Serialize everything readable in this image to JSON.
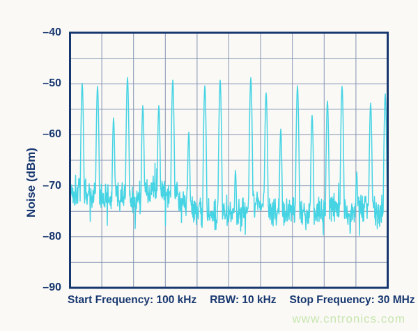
{
  "colors": {
    "axis_navy": "#17376f",
    "grid_blue_gray": "#8494b2",
    "trace_cyan": "#46d4e4",
    "watermark_green": "#c7e5ae",
    "background": "#faf9f6"
  },
  "y_axis": {
    "title": "Noise (dBm)",
    "tick_labels": [
      "–40",
      "–50",
      "–60",
      "–70",
      "–80",
      "–90"
    ]
  },
  "caption": {
    "start": "Start Frequency: 100 kHz",
    "rbw": "RBW: 10 kHz",
    "stop": "Stop Frequency: 30 MHz"
  },
  "watermark": {
    "text": "www.cntronics.com"
  },
  "chart_data": {
    "type": "line",
    "title": "",
    "xlabel": "Start Frequency: 100 kHz   RBW: 10 kHz   Stop Frequency: 30 MHz",
    "ylabel": "Noise (dBm)",
    "x_unit": "MHz",
    "x_range": [
      0.1,
      30
    ],
    "ylim": [
      -90,
      -40
    ],
    "y_ticks": [
      -40,
      -50,
      -60,
      -70,
      -80,
      -90
    ],
    "grid": {
      "shown": true,
      "x_divisions": 10,
      "y_divisions": 10
    },
    "legend": "none",
    "series_name": "noise-spectrum-with-spurs",
    "noise_floor": {
      "left_mean_dbm": -71.9,
      "right_mean_dbm": -74.7,
      "transition_mhz": [
        9.9,
        11.5
      ],
      "peak_to_peak_db": 7,
      "min_dbm": -79.5
    },
    "spikes": [
      {
        "freq_mhz": 1.25,
        "peak_dbm": -49.9
      },
      {
        "freq_mhz": 2.69,
        "peak_dbm": -50.5
      },
      {
        "freq_mhz": 4.2,
        "peak_dbm": -56.7
      },
      {
        "freq_mhz": 5.51,
        "peak_dbm": -48.8
      },
      {
        "freq_mhz": 6.95,
        "peak_dbm": -54.3
      },
      {
        "freq_mhz": 8.46,
        "peak_dbm": -54.3
      },
      {
        "freq_mhz": 9.77,
        "peak_dbm": -49.3
      },
      {
        "freq_mhz": 11.28,
        "peak_dbm": -59.5
      },
      {
        "freq_mhz": 12.79,
        "peak_dbm": -50.4
      },
      {
        "freq_mhz": 14.23,
        "peak_dbm": -49.3
      },
      {
        "freq_mhz": 15.67,
        "peak_dbm": -67.0
      },
      {
        "freq_mhz": 17.12,
        "peak_dbm": -48.8
      },
      {
        "freq_mhz": 18.56,
        "peak_dbm": -51.8
      },
      {
        "freq_mhz": 19.93,
        "peak_dbm": -58.9
      },
      {
        "freq_mhz": 21.51,
        "peak_dbm": -50.4
      },
      {
        "freq_mhz": 22.89,
        "peak_dbm": -56.2
      },
      {
        "freq_mhz": 24.33,
        "peak_dbm": -53.4
      },
      {
        "freq_mhz": 25.7,
        "peak_dbm": -50.5
      },
      {
        "freq_mhz": 27.08,
        "peak_dbm": -67.3
      },
      {
        "freq_mhz": 28.39,
        "peak_dbm": -53.8
      },
      {
        "freq_mhz": 29.77,
        "peak_dbm": -52.0
      }
    ]
  }
}
